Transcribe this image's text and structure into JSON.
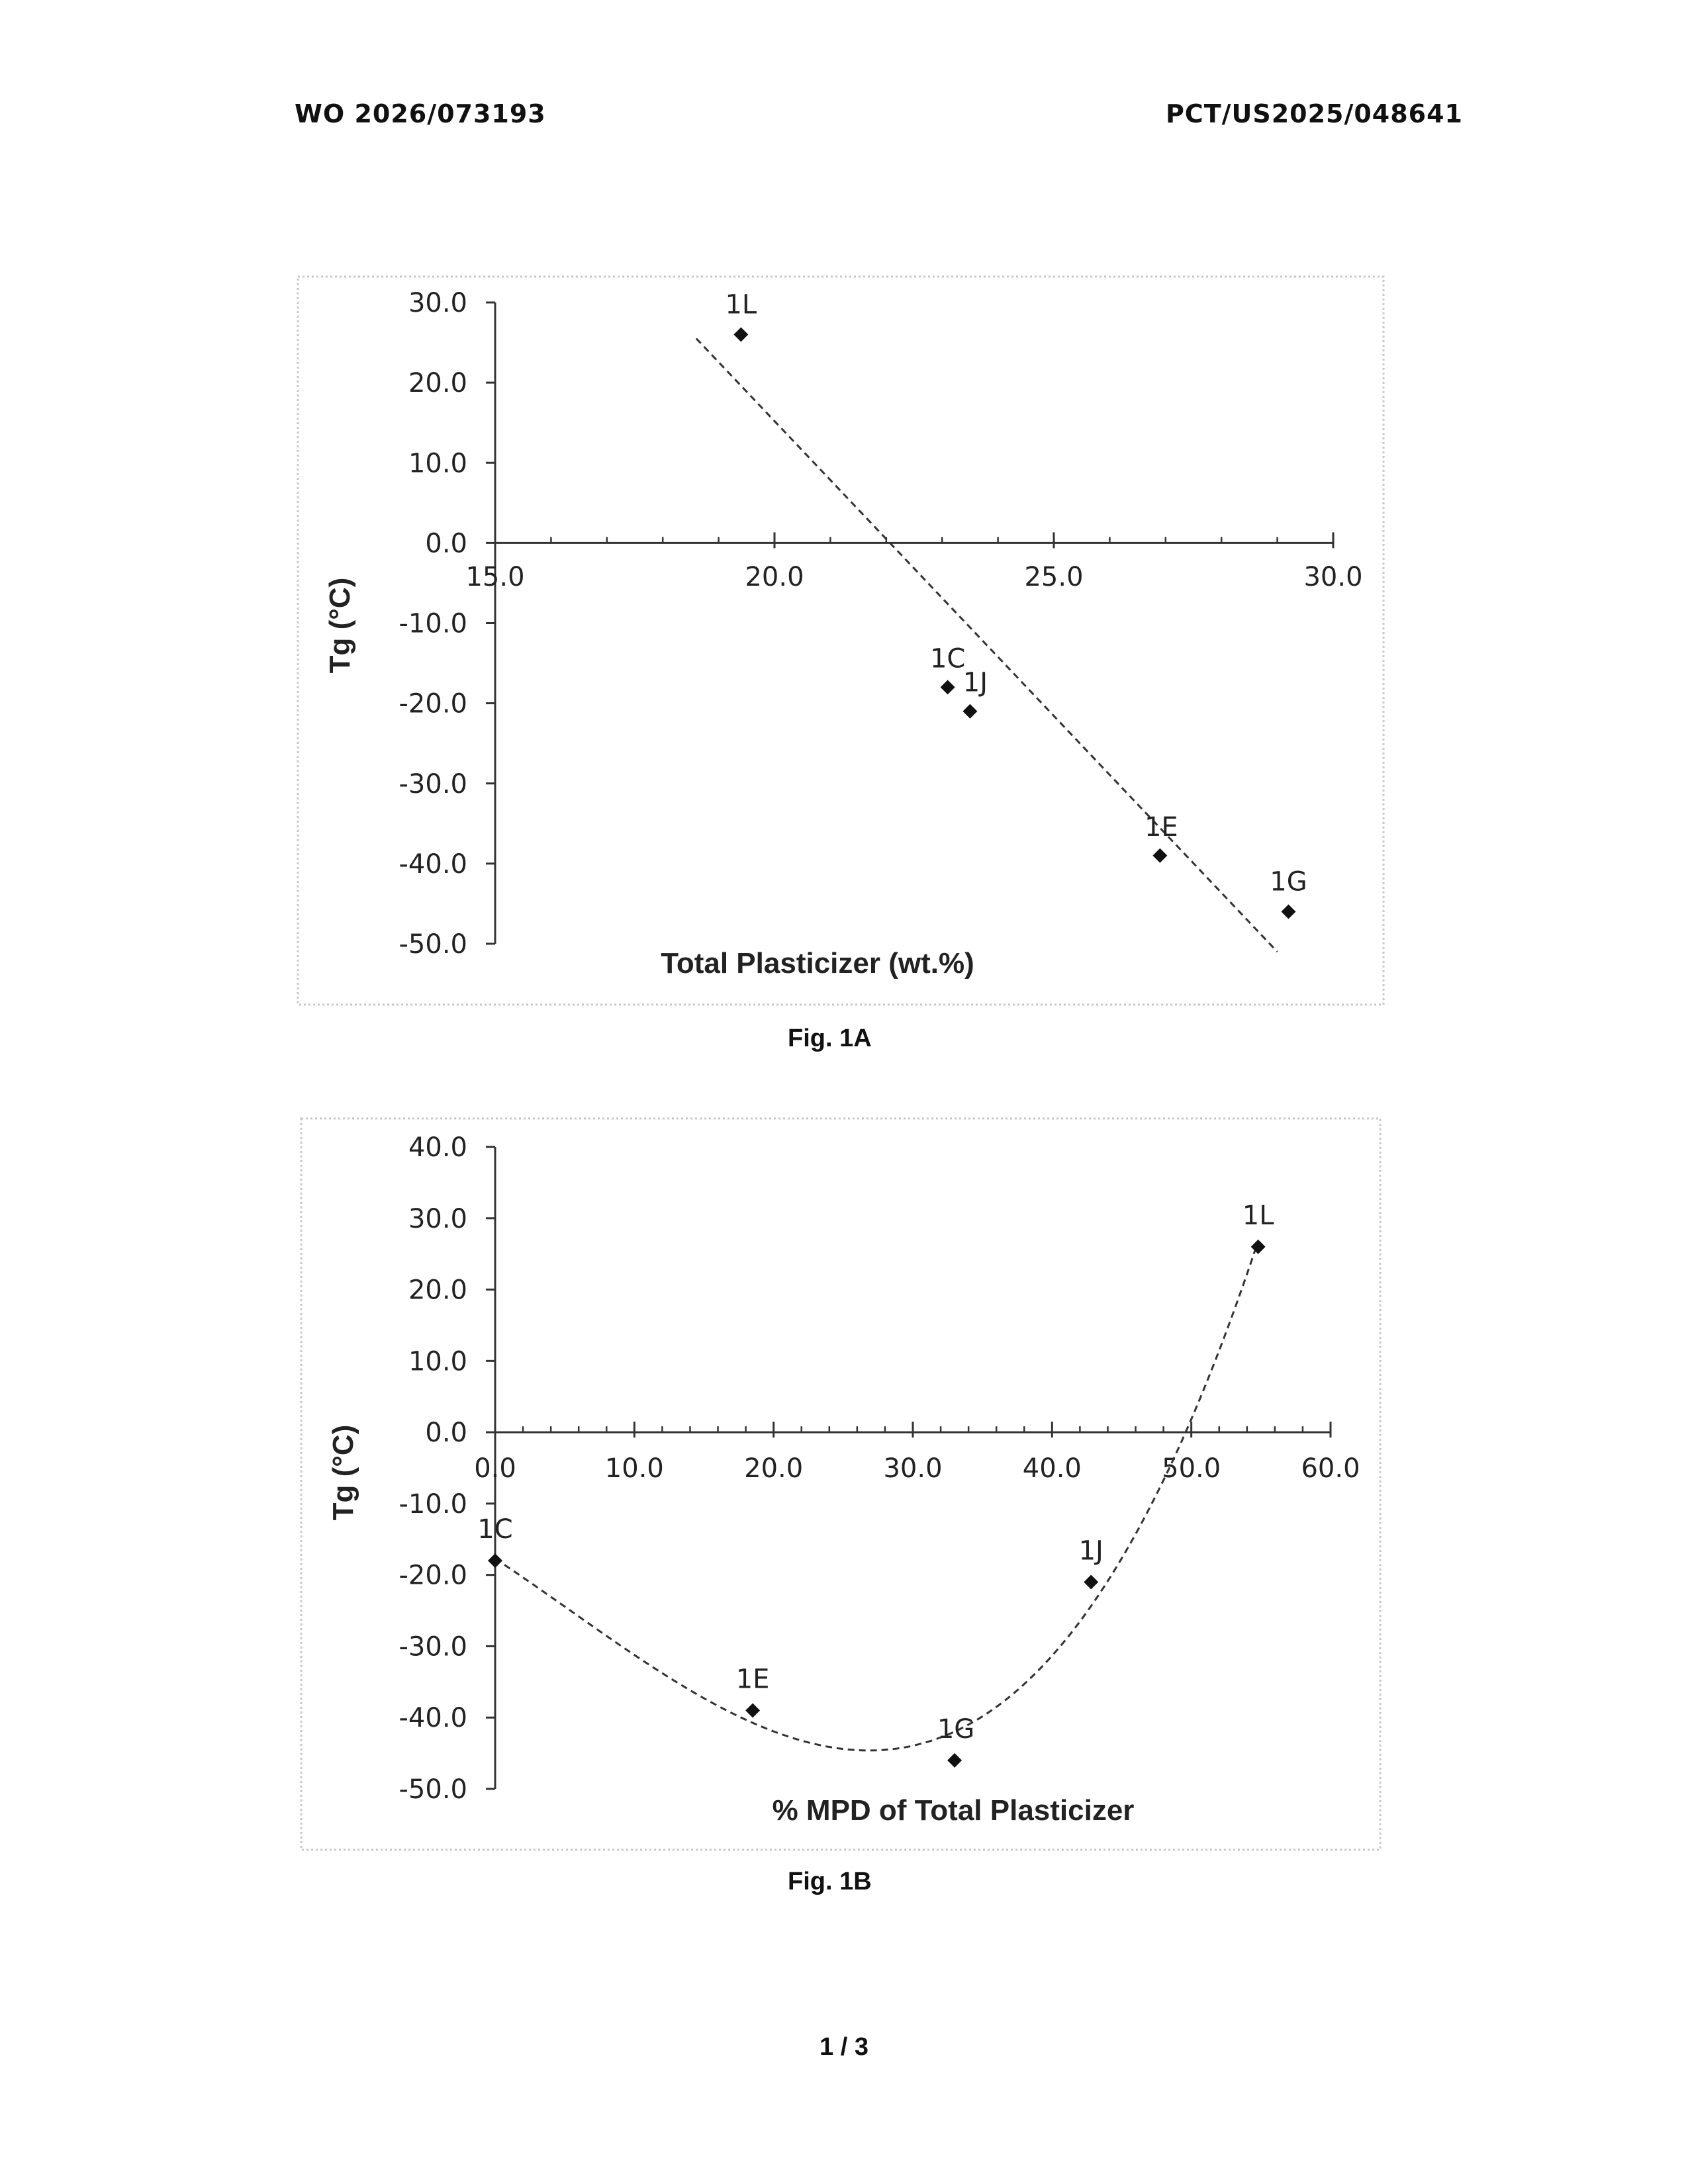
{
  "header": {
    "left": "WO 2026/073193",
    "right": "PCT/US2025/048641"
  },
  "footer": {
    "page": "1 / 3"
  },
  "chart_data": [
    {
      "id": "fig1a",
      "type": "scatter",
      "caption": "Fig. 1A",
      "xlabel": "Total Plasticizer (wt.%)",
      "ylabel": "Tg (°C)",
      "xlim": [
        15.0,
        30.0
      ],
      "ylim": [
        -50.0,
        30.0
      ],
      "xticks": [
        "15.0",
        "20.0",
        "25.0",
        "30.0"
      ],
      "yticks": [
        "30.0",
        "20.0",
        "10.0",
        "0.0",
        "-10.0",
        "-20.0",
        "-30.0",
        "-40.0",
        "-50.0"
      ],
      "points": [
        {
          "label": "1L",
          "x": 19.4,
          "y": 26.0
        },
        {
          "label": "1C",
          "x": 23.1,
          "y": -18.0
        },
        {
          "label": "1J",
          "x": 23.5,
          "y": -21.0
        },
        {
          "label": "1E",
          "x": 26.9,
          "y": -39.0
        },
        {
          "label": "1G",
          "x": 29.2,
          "y": -46.0
        }
      ],
      "trendline": {
        "type": "linear",
        "x": [
          18.6,
          29.0
        ],
        "y": [
          25.5,
          -51.0
        ]
      },
      "grid": false
    },
    {
      "id": "fig1b",
      "type": "scatter",
      "caption": "Fig. 1B",
      "xlabel": "% MPD of Total Plasticizer",
      "ylabel": "Tg (°C)",
      "xlim": [
        0.0,
        60.0
      ],
      "ylim": [
        -50.0,
        40.0
      ],
      "xticks": [
        "0.0",
        "10.0",
        "20.0",
        "30.0",
        "40.0",
        "50.0",
        "60.0"
      ],
      "yticks": [
        "40.0",
        "30.0",
        "20.0",
        "10.0",
        "0.0",
        "-10.0",
        "-20.0",
        "-30.0",
        "-40.0",
        "-50.0"
      ],
      "points": [
        {
          "label": "1C",
          "x": 0.0,
          "y": -18.0
        },
        {
          "label": "1E",
          "x": 18.5,
          "y": -39.0
        },
        {
          "label": "1G",
          "x": 33.0,
          "y": -46.0
        },
        {
          "label": "1J",
          "x": 42.8,
          "y": -21.0
        },
        {
          "label": "1L",
          "x": 54.8,
          "y": 26.0
        }
      ],
      "trendline": {
        "type": "polynomial"
      },
      "grid": false
    }
  ]
}
